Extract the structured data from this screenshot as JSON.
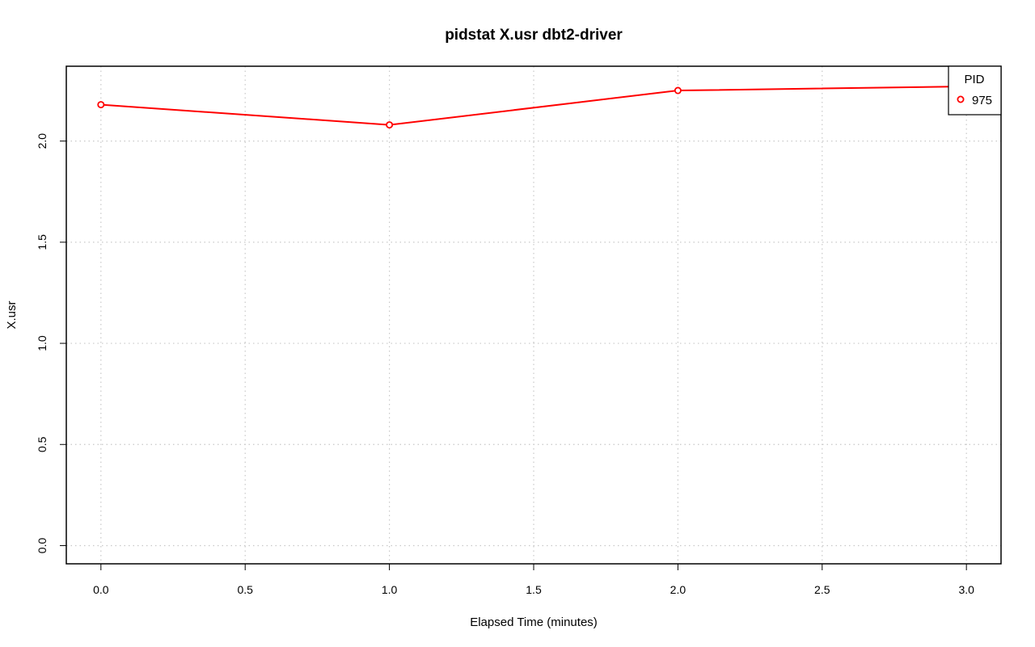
{
  "chart_data": {
    "type": "line",
    "title": "pidstat X.usr dbt2-driver",
    "xlabel": "Elapsed Time (minutes)",
    "ylabel": "X.usr",
    "xlim": [
      -0.12,
      3.12
    ],
    "ylim": [
      -0.09,
      2.37
    ],
    "x_ticks": [
      0.0,
      0.5,
      1.0,
      1.5,
      2.0,
      2.5,
      3.0
    ],
    "x_tick_labels": [
      "0.0",
      "0.5",
      "1.0",
      "1.5",
      "2.0",
      "2.5",
      "3.0"
    ],
    "y_ticks": [
      0.0,
      0.5,
      1.0,
      1.5,
      2.0
    ],
    "y_tick_labels": [
      "0.0",
      "0.5",
      "1.0",
      "1.5",
      "2.0"
    ],
    "grid": true,
    "legend": {
      "title": "PID",
      "position": "top-right"
    },
    "series": [
      {
        "name": "975",
        "color": "#ff0000",
        "marker": "open-circle",
        "x": [
          0,
          1,
          2,
          3
        ],
        "y": [
          2.18,
          2.08,
          2.25,
          2.27
        ]
      }
    ]
  }
}
